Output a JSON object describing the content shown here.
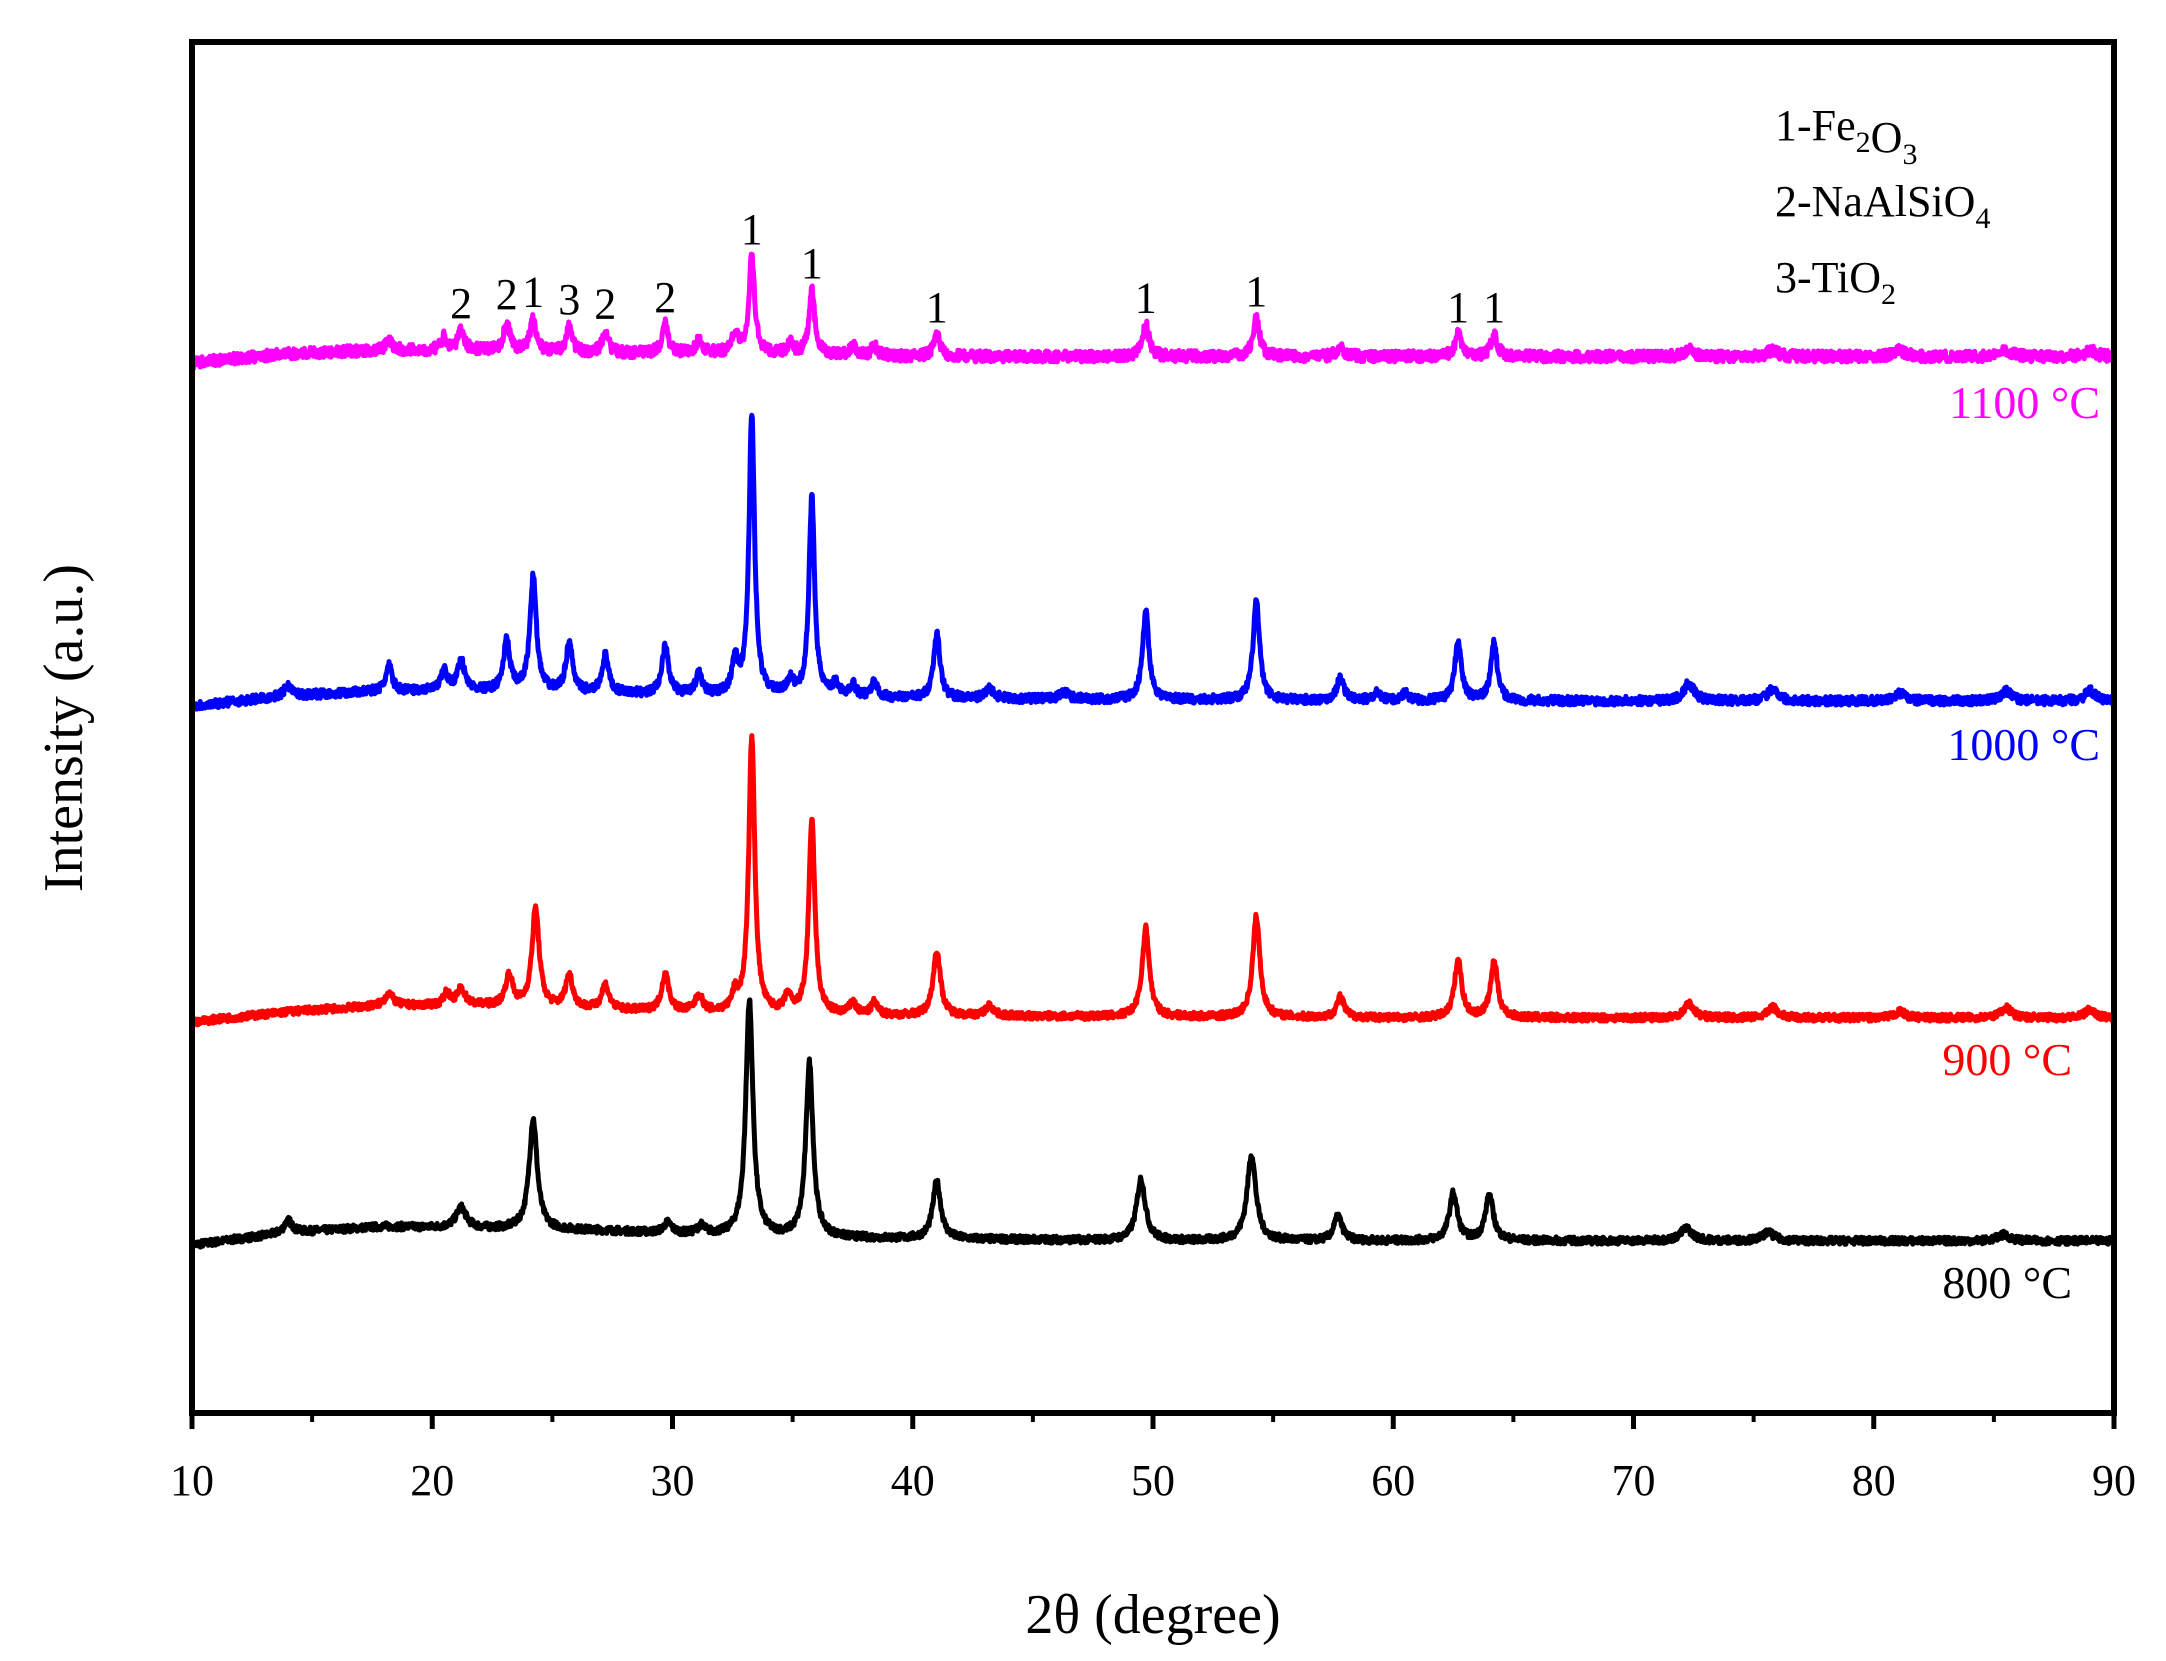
{
  "chart_data": {
    "type": "line",
    "title": "",
    "xlabel": "2θ (degree)",
    "ylabel": "Intensity (a.u.)",
    "xlim": [
      10,
      90
    ],
    "xticks": [
      10,
      20,
      30,
      40,
      50,
      60,
      70,
      80,
      90
    ],
    "yticks_shown": false,
    "grid": false,
    "series": [
      {
        "name": "800 °C",
        "label": "800 °C",
        "color": "#000000",
        "baseline": 0,
        "background": [
          [
            10,
            0
          ],
          [
            14,
            0.6
          ],
          [
            18,
            0.9
          ],
          [
            22,
            0.8
          ],
          [
            27,
            0.7
          ],
          [
            33,
            0.4
          ],
          [
            40,
            0.3
          ],
          [
            50,
            0.2
          ],
          [
            60,
            0.2
          ],
          [
            90,
            0.2
          ]
        ],
        "peaks": [
          [
            14.0,
            0.6,
            0.2
          ],
          [
            21.2,
            1.0,
            0.25
          ],
          [
            24.2,
            5.4,
            0.2
          ],
          [
            29.8,
            0.5,
            0.2
          ],
          [
            31.2,
            0.4,
            0.2
          ],
          [
            33.2,
            11.5,
            0.18
          ],
          [
            35.7,
            8.5,
            0.18
          ],
          [
            41.0,
            2.8,
            0.2
          ],
          [
            49.5,
            3.0,
            0.22
          ],
          [
            54.1,
            4.2,
            0.22
          ],
          [
            57.7,
            1.2,
            0.2
          ],
          [
            62.5,
            2.3,
            0.2
          ],
          [
            64.0,
            2.2,
            0.2
          ],
          [
            72.2,
            0.6,
            0.3
          ],
          [
            75.6,
            0.4,
            0.3
          ],
          [
            85.4,
            0.3,
            0.3
          ]
        ]
      },
      {
        "name": "900 °C",
        "label": "900 °C",
        "color": "#ff0000",
        "baseline": 9,
        "background": [
          [
            10,
            0
          ],
          [
            14,
            0.5
          ],
          [
            18,
            0.8
          ],
          [
            22,
            0.8
          ],
          [
            27,
            0.6
          ],
          [
            33,
            0.4
          ],
          [
            40,
            0.3
          ],
          [
            60,
            0.2
          ],
          [
            90,
            0.2
          ]
        ],
        "peaks": [
          [
            18.2,
            0.6,
            0.2
          ],
          [
            20.6,
            0.6,
            0.15
          ],
          [
            21.2,
            0.8,
            0.2
          ],
          [
            23.2,
            1.5,
            0.18
          ],
          [
            24.3,
            4.8,
            0.18
          ],
          [
            25.7,
            1.6,
            0.18
          ],
          [
            27.2,
            1.2,
            0.18
          ],
          [
            29.7,
            1.8,
            0.18
          ],
          [
            31.1,
            0.8,
            0.18
          ],
          [
            32.6,
            0.8,
            0.15
          ],
          [
            33.3,
            13.5,
            0.15
          ],
          [
            34.8,
            0.8,
            0.15
          ],
          [
            35.8,
            9.5,
            0.15
          ],
          [
            37.5,
            0.6,
            0.15
          ],
          [
            38.4,
            0.6,
            0.15
          ],
          [
            41.0,
            3.2,
            0.18
          ],
          [
            43.2,
            0.5,
            0.2
          ],
          [
            49.7,
            4.3,
            0.18
          ],
          [
            54.3,
            4.9,
            0.18
          ],
          [
            57.8,
            1.0,
            0.18
          ],
          [
            62.7,
            2.8,
            0.18
          ],
          [
            64.2,
            2.7,
            0.18
          ],
          [
            72.3,
            0.7,
            0.25
          ],
          [
            75.8,
            0.5,
            0.25
          ],
          [
            81.1,
            0.3,
            0.25
          ],
          [
            85.5,
            0.5,
            0.25
          ],
          [
            89.0,
            0.4,
            0.25
          ]
        ]
      },
      {
        "name": "1000 °C",
        "label": "1000 °C",
        "color": "#0000ff",
        "baseline": 18.2,
        "background": [
          [
            10,
            0
          ],
          [
            14,
            0.4
          ],
          [
            18,
            0.6
          ],
          [
            22,
            0.6
          ],
          [
            27,
            0.5
          ],
          [
            33,
            0.4
          ],
          [
            40,
            0.3
          ],
          [
            60,
            0.2
          ],
          [
            90,
            0.2
          ]
        ],
        "peaks": [
          [
            14.0,
            0.4,
            0.2
          ],
          [
            18.2,
            1.0,
            0.15
          ],
          [
            20.5,
            0.8,
            0.15
          ],
          [
            21.2,
            1.2,
            0.18
          ],
          [
            23.1,
            2.0,
            0.16
          ],
          [
            24.2,
            4.6,
            0.16
          ],
          [
            25.7,
            2.0,
            0.16
          ],
          [
            27.2,
            1.5,
            0.16
          ],
          [
            29.7,
            2.0,
            0.16
          ],
          [
            31.1,
            0.8,
            0.16
          ],
          [
            32.6,
            1.3,
            0.15
          ],
          [
            33.3,
            11.2,
            0.14
          ],
          [
            34.9,
            0.6,
            0.15
          ],
          [
            35.8,
            8.0,
            0.14
          ],
          [
            36.8,
            0.5,
            0.15
          ],
          [
            37.5,
            0.5,
            0.15
          ],
          [
            38.4,
            0.6,
            0.15
          ],
          [
            41.0,
            2.6,
            0.16
          ],
          [
            43.2,
            0.4,
            0.2
          ],
          [
            46.3,
            0.3,
            0.2
          ],
          [
            49.7,
            3.5,
            0.16
          ],
          [
            54.3,
            4.0,
            0.16
          ],
          [
            57.8,
            0.9,
            0.18
          ],
          [
            59.3,
            0.3,
            0.18
          ],
          [
            60.5,
            0.3,
            0.18
          ],
          [
            62.7,
            2.4,
            0.16
          ],
          [
            64.2,
            2.3,
            0.16
          ],
          [
            72.3,
            0.7,
            0.25
          ],
          [
            75.8,
            0.5,
            0.25
          ],
          [
            81.1,
            0.3,
            0.25
          ],
          [
            85.5,
            0.4,
            0.25
          ],
          [
            89.0,
            0.4,
            0.25
          ]
        ]
      },
      {
        "name": "1100 °C",
        "label": "1100 °C",
        "color": "#ff00ff",
        "baseline": 27.3,
        "background": [
          [
            10,
            0
          ],
          [
            14,
            0.3
          ],
          [
            18,
            0.4
          ],
          [
            22,
            0.4
          ],
          [
            27,
            0.3
          ],
          [
            33,
            0.3
          ],
          [
            40,
            0.2
          ],
          [
            60,
            0.2
          ],
          [
            90,
            0.2
          ]
        ],
        "peaks": [
          [
            18.2,
            0.3,
            0.15
          ],
          [
            20.5,
            0.4,
            0.15
          ],
          [
            21.2,
            0.6,
            0.15
          ],
          [
            23.1,
            0.9,
            0.15
          ],
          [
            24.2,
            1.0,
            0.15
          ],
          [
            25.7,
            0.8,
            0.15
          ],
          [
            27.2,
            0.7,
            0.15
          ],
          [
            29.7,
            0.9,
            0.15
          ],
          [
            31.1,
            0.4,
            0.15
          ],
          [
            32.6,
            0.6,
            0.15
          ],
          [
            33.3,
            3.0,
            0.14
          ],
          [
            34.9,
            0.3,
            0.15
          ],
          [
            35.8,
            2.0,
            0.14
          ],
          [
            37.5,
            0.3,
            0.15
          ],
          [
            38.4,
            0.3,
            0.15
          ],
          [
            41.0,
            0.7,
            0.16
          ],
          [
            49.7,
            1.0,
            0.16
          ],
          [
            54.3,
            1.2,
            0.16
          ],
          [
            57.8,
            0.3,
            0.18
          ],
          [
            62.7,
            0.7,
            0.16
          ],
          [
            64.2,
            0.7,
            0.16
          ],
          [
            72.3,
            0.2,
            0.25
          ],
          [
            75.8,
            0.2,
            0.25
          ],
          [
            81.1,
            0.2,
            0.25
          ],
          [
            85.5,
            0.2,
            0.25
          ],
          [
            89.0,
            0.2,
            0.25
          ]
        ]
      }
    ],
    "annotations": [
      {
        "text": "2",
        "x": 21.2
      },
      {
        "text": "2",
        "x": 23.1
      },
      {
        "text": "1",
        "x": 24.2
      },
      {
        "text": "3",
        "x": 25.7
      },
      {
        "text": "2",
        "x": 27.2
      },
      {
        "text": "2",
        "x": 29.7
      },
      {
        "text": "1",
        "x": 33.3
      },
      {
        "text": "1",
        "x": 35.8
      },
      {
        "text": "1",
        "x": 41.0
      },
      {
        "text": "1",
        "x": 49.7
      },
      {
        "text": "1",
        "x": 54.3
      },
      {
        "text": "1",
        "x": 62.7
      },
      {
        "text": "1",
        "x": 64.2
      }
    ],
    "legend": {
      "position": "top-right",
      "entries": [
        {
          "prefix": "1-",
          "parts": [
            [
              "Fe",
              "2"
            ],
            [
              "O",
              "3"
            ]
          ]
        },
        {
          "prefix": "2-",
          "parts": [
            [
              "NaAlSiO",
              "4"
            ]
          ]
        },
        {
          "prefix": "3-",
          "parts": [
            [
              "TiO",
              "2"
            ]
          ]
        }
      ]
    }
  }
}
